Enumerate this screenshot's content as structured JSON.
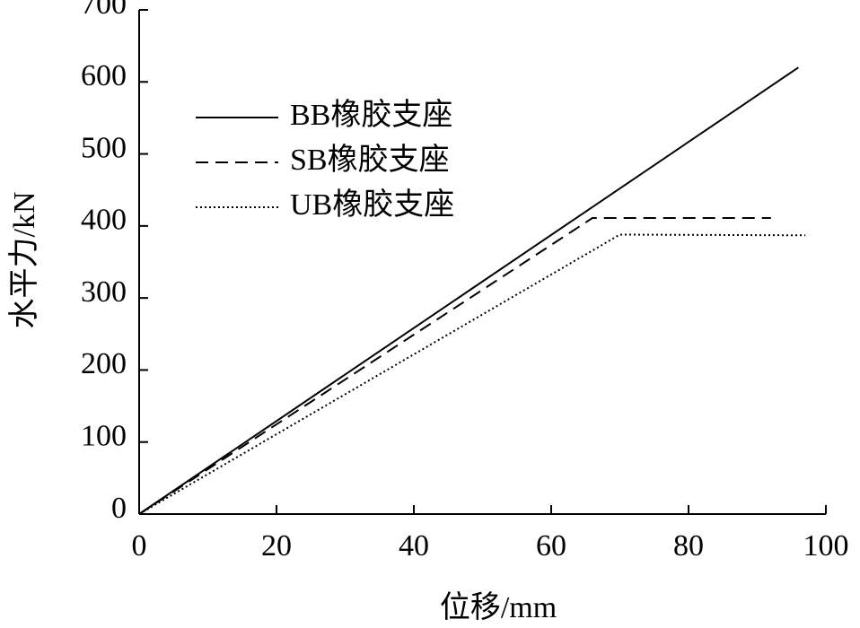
{
  "chart_data": {
    "type": "line",
    "xlabel": "位移/mm",
    "ylabel": "水平力/kN",
    "xlim": [
      0,
      100
    ],
    "ylim": [
      0,
      700
    ],
    "xticks": [
      0,
      20,
      40,
      60,
      80,
      100
    ],
    "yticks": [
      0,
      100,
      200,
      300,
      400,
      500,
      600,
      700
    ],
    "legend": "upper left",
    "series": [
      {
        "name": "BB橡胶支座",
        "color": "#000000",
        "dash": "solid",
        "x": [
          0,
          96
        ],
        "values": [
          0,
          620
        ]
      },
      {
        "name": "SB橡胶支座",
        "color": "#000000",
        "dash": "dashed",
        "x": [
          0,
          66,
          92
        ],
        "values": [
          0,
          411,
          411
        ]
      },
      {
        "name": "UB橡胶支座",
        "color": "#000000",
        "dash": "dotted",
        "x": [
          0,
          70,
          97
        ],
        "values": [
          0,
          388,
          387
        ]
      }
    ]
  }
}
